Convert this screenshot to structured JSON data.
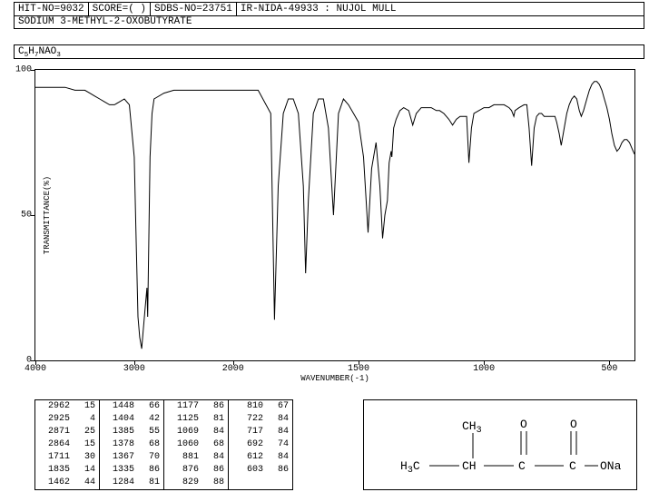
{
  "header": {
    "hit_no_label": "HIT-NO=",
    "hit_no": "9032",
    "score_label": "SCORE=",
    "score": "(  )",
    "sdbs_label": "SDBS-NO=",
    "sdbs_no": "23751",
    "ir_label": "IR-NIDA-49933 : NUJOL MULL"
  },
  "compound": "SODIUM 3-METHYL-2-OXOBUTYRATE",
  "formula_html": "C<sub>5</sub>H<sub>7</sub>NAO<sub>3</sub>",
  "chart": {
    "type": "line",
    "background": "#ffffff",
    "line_color": "#000000",
    "line_width": 1,
    "xlim": [
      4000,
      400
    ],
    "ylim": [
      0,
      100
    ],
    "xticks": [
      4000,
      3000,
      2000,
      1500,
      1000,
      500
    ],
    "yticks": [
      0,
      50,
      100
    ],
    "xlabel": "WAVENUMBER(-1)",
    "ylabel": "TRANSMITTANCE(%)",
    "label_fontsize": 9,
    "tick_fontsize": 10,
    "spectrum": [
      [
        4000,
        94
      ],
      [
        3900,
        94
      ],
      [
        3800,
        94
      ],
      [
        3700,
        94
      ],
      [
        3600,
        93
      ],
      [
        3500,
        93
      ],
      [
        3450,
        92
      ],
      [
        3400,
        91
      ],
      [
        3350,
        90
      ],
      [
        3300,
        89
      ],
      [
        3250,
        88
      ],
      [
        3200,
        88
      ],
      [
        3150,
        89
      ],
      [
        3100,
        90
      ],
      [
        3050,
        88
      ],
      [
        3000,
        70
      ],
      [
        2980,
        40
      ],
      [
        2962,
        15
      ],
      [
        2945,
        8
      ],
      [
        2925,
        4
      ],
      [
        2910,
        10
      ],
      [
        2890,
        18
      ],
      [
        2871,
        25
      ],
      [
        2864,
        15
      ],
      [
        2858,
        30
      ],
      [
        2840,
        70
      ],
      [
        2820,
        85
      ],
      [
        2800,
        90
      ],
      [
        2700,
        92
      ],
      [
        2600,
        93
      ],
      [
        2500,
        93
      ],
      [
        2400,
        93
      ],
      [
        2300,
        93
      ],
      [
        2200,
        93
      ],
      [
        2100,
        93
      ],
      [
        2000,
        93
      ],
      [
        1950,
        93
      ],
      [
        1900,
        93
      ],
      [
        1850,
        85
      ],
      [
        1835,
        14
      ],
      [
        1820,
        60
      ],
      [
        1800,
        85
      ],
      [
        1780,
        90
      ],
      [
        1760,
        90
      ],
      [
        1740,
        85
      ],
      [
        1720,
        60
      ],
      [
        1711,
        30
      ],
      [
        1700,
        55
      ],
      [
        1680,
        85
      ],
      [
        1660,
        90
      ],
      [
        1640,
        90
      ],
      [
        1620,
        80
      ],
      [
        1600,
        50
      ],
      [
        1580,
        85
      ],
      [
        1560,
        90
      ],
      [
        1540,
        88
      ],
      [
        1520,
        85
      ],
      [
        1500,
        82
      ],
      [
        1480,
        70
      ],
      [
        1462,
        44
      ],
      [
        1448,
        66
      ],
      [
        1430,
        75
      ],
      [
        1415,
        60
      ],
      [
        1404,
        42
      ],
      [
        1395,
        50
      ],
      [
        1385,
        55
      ],
      [
        1378,
        68
      ],
      [
        1370,
        72
      ],
      [
        1367,
        70
      ],
      [
        1360,
        80
      ],
      [
        1350,
        83
      ],
      [
        1335,
        86
      ],
      [
        1320,
        87
      ],
      [
        1300,
        86
      ],
      [
        1284,
        81
      ],
      [
        1270,
        85
      ],
      [
        1250,
        87
      ],
      [
        1230,
        87
      ],
      [
        1210,
        87
      ],
      [
        1190,
        86
      ],
      [
        1177,
        86
      ],
      [
        1160,
        85
      ],
      [
        1140,
        83
      ],
      [
        1125,
        81
      ],
      [
        1110,
        83
      ],
      [
        1095,
        84
      ],
      [
        1080,
        84
      ],
      [
        1069,
        84
      ],
      [
        1060,
        68
      ],
      [
        1050,
        80
      ],
      [
        1040,
        85
      ],
      [
        1020,
        86
      ],
      [
        1000,
        87
      ],
      [
        980,
        87
      ],
      [
        960,
        88
      ],
      [
        940,
        88
      ],
      [
        920,
        88
      ],
      [
        900,
        87
      ],
      [
        890,
        86
      ],
      [
        881,
        84
      ],
      [
        876,
        86
      ],
      [
        860,
        87
      ],
      [
        840,
        88
      ],
      [
        829,
        88
      ],
      [
        820,
        80
      ],
      [
        810,
        67
      ],
      [
        800,
        80
      ],
      [
        790,
        84
      ],
      [
        780,
        85
      ],
      [
        770,
        85
      ],
      [
        760,
        84
      ],
      [
        750,
        84
      ],
      [
        740,
        84
      ],
      [
        730,
        84
      ],
      [
        722,
        84
      ],
      [
        717,
        84
      ],
      [
        710,
        82
      ],
      [
        700,
        78
      ],
      [
        692,
        74
      ],
      [
        680,
        80
      ],
      [
        670,
        85
      ],
      [
        660,
        88
      ],
      [
        650,
        90
      ],
      [
        640,
        91
      ],
      [
        630,
        90
      ],
      [
        620,
        86
      ],
      [
        612,
        84
      ],
      [
        603,
        86
      ],
      [
        590,
        90
      ],
      [
        580,
        93
      ],
      [
        570,
        95
      ],
      [
        560,
        96
      ],
      [
        550,
        96
      ],
      [
        540,
        95
      ],
      [
        530,
        93
      ],
      [
        520,
        90
      ],
      [
        510,
        87
      ],
      [
        500,
        83
      ],
      [
        490,
        78
      ],
      [
        480,
        74
      ],
      [
        470,
        72
      ],
      [
        460,
        73
      ],
      [
        450,
        75
      ],
      [
        440,
        76
      ],
      [
        430,
        76
      ],
      [
        420,
        75
      ],
      [
        410,
        73
      ],
      [
        400,
        71
      ]
    ]
  },
  "peaks": [
    [
      [
        2962,
        15
      ],
      [
        2925,
        4
      ],
      [
        2871,
        25
      ],
      [
        2864,
        15
      ],
      [
        1711,
        30
      ],
      [
        1835,
        14
      ],
      [
        1462,
        44
      ]
    ],
    [
      [
        1448,
        66
      ],
      [
        1404,
        42
      ],
      [
        1385,
        55
      ],
      [
        1378,
        68
      ],
      [
        1367,
        70
      ],
      [
        1335,
        86
      ],
      [
        1284,
        81
      ]
    ],
    [
      [
        1177,
        86
      ],
      [
        1125,
        81
      ],
      [
        1069,
        84
      ],
      [
        1060,
        68
      ],
      [
        881,
        84
      ],
      [
        876,
        86
      ],
      [
        829,
        88
      ]
    ],
    [
      [
        810,
        67
      ],
      [
        722,
        84
      ],
      [
        717,
        84
      ],
      [
        692,
        74
      ],
      [
        612,
        84
      ],
      [
        603,
        86
      ]
    ]
  ],
  "structure": {
    "type": "chemical-structure",
    "atoms": [
      "CH3",
      "CH3",
      "CH",
      "C",
      "C",
      "O",
      "O",
      "O",
      "ONa"
    ],
    "text_color": "#000000",
    "line_color": "#000000"
  }
}
